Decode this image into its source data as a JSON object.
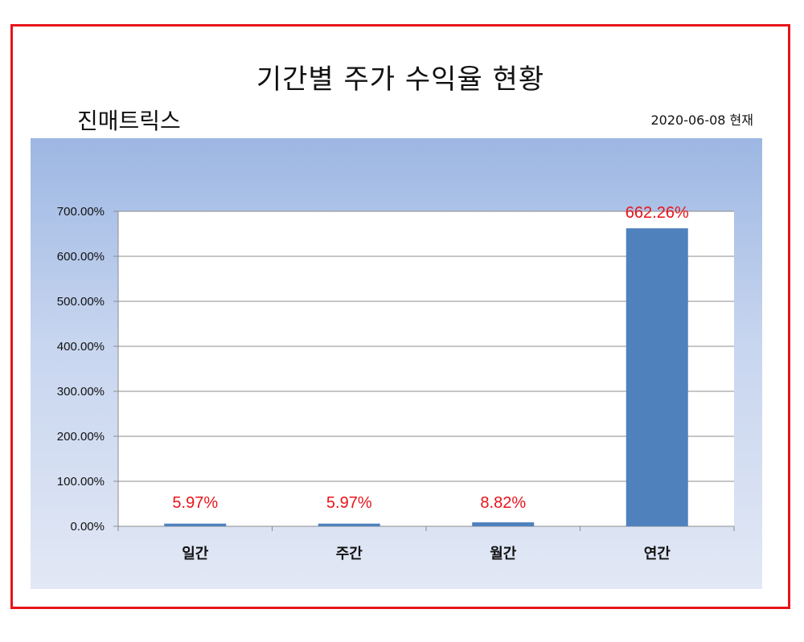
{
  "header": {
    "title": "기간별 주가 수익율 현황",
    "company": "진매트릭스",
    "as_of": "2020-06-08 현재"
  },
  "colors": {
    "border": "#e8141b",
    "bar": "#4f81bd",
    "label": "#e8141b"
  },
  "chart_data": {
    "type": "bar",
    "categories": [
      "일간",
      "주간",
      "월간",
      "연간"
    ],
    "values": [
      5.97,
      5.97,
      8.82,
      662.26
    ],
    "data_labels": [
      "5.97%",
      "5.97%",
      "8.82%",
      "662.26%"
    ],
    "yticks": [
      "0.00%",
      "100.00%",
      "200.00%",
      "300.00%",
      "400.00%",
      "500.00%",
      "600.00%",
      "700.00%"
    ],
    "ylim": [
      0,
      700
    ],
    "grid": true,
    "legend": "none"
  }
}
